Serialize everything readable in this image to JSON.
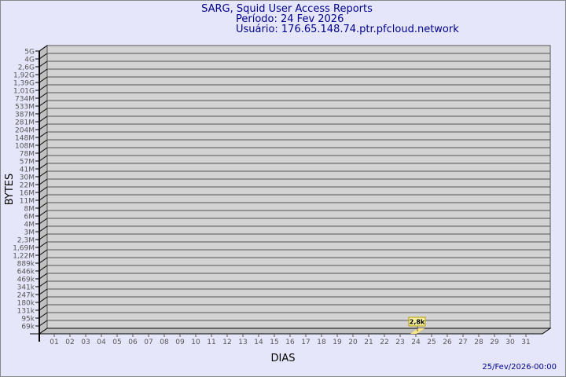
{
  "header": {
    "title": "SARG, Squid User Access Reports",
    "period": "Período: 24 Fev 2026",
    "user": "Usuário: 176.65.148.74.ptr.pfcloud.network"
  },
  "footer": {
    "timestamp": "25/Fev/2026-00:00"
  },
  "colors": {
    "background": "#e6e6fa",
    "plot": "#d3d3d3",
    "bar": "#ffe680",
    "title": "#00008b"
  },
  "chart_data": {
    "type": "bar",
    "xlabel": "DIAS",
    "ylabel": "BYTES",
    "y_scale": "log",
    "grid": true,
    "categories": [
      "01",
      "02",
      "03",
      "04",
      "05",
      "06",
      "07",
      "08",
      "09",
      "10",
      "11",
      "12",
      "13",
      "14",
      "15",
      "16",
      "17",
      "18",
      "19",
      "20",
      "21",
      "22",
      "23",
      "24",
      "25",
      "26",
      "27",
      "28",
      "29",
      "30",
      "31"
    ],
    "y_tick_labels": [
      "5G",
      "4G",
      "2,6G",
      "1,92G",
      "1,39G",
      "1,01G",
      "734M",
      "533M",
      "387M",
      "281M",
      "204M",
      "148M",
      "108M",
      "78M",
      "57M",
      "41M",
      "30M",
      "22M",
      "16M",
      "11M",
      "8M",
      "6M",
      "4M",
      "3M",
      "2,3M",
      "1,69M",
      "1,22M",
      "889k",
      "646k",
      "469k",
      "341k",
      "247k",
      "180k",
      "131k",
      "95k",
      "69k"
    ],
    "series": [
      {
        "values": [
          null,
          null,
          null,
          null,
          null,
          null,
          null,
          null,
          null,
          null,
          null,
          null,
          null,
          null,
          null,
          null,
          null,
          null,
          null,
          null,
          null,
          null,
          null,
          2800,
          null,
          null,
          null,
          null,
          null,
          null,
          null
        ]
      }
    ],
    "data_labels": [
      {
        "category": "24",
        "label": "2,8k"
      }
    ]
  }
}
